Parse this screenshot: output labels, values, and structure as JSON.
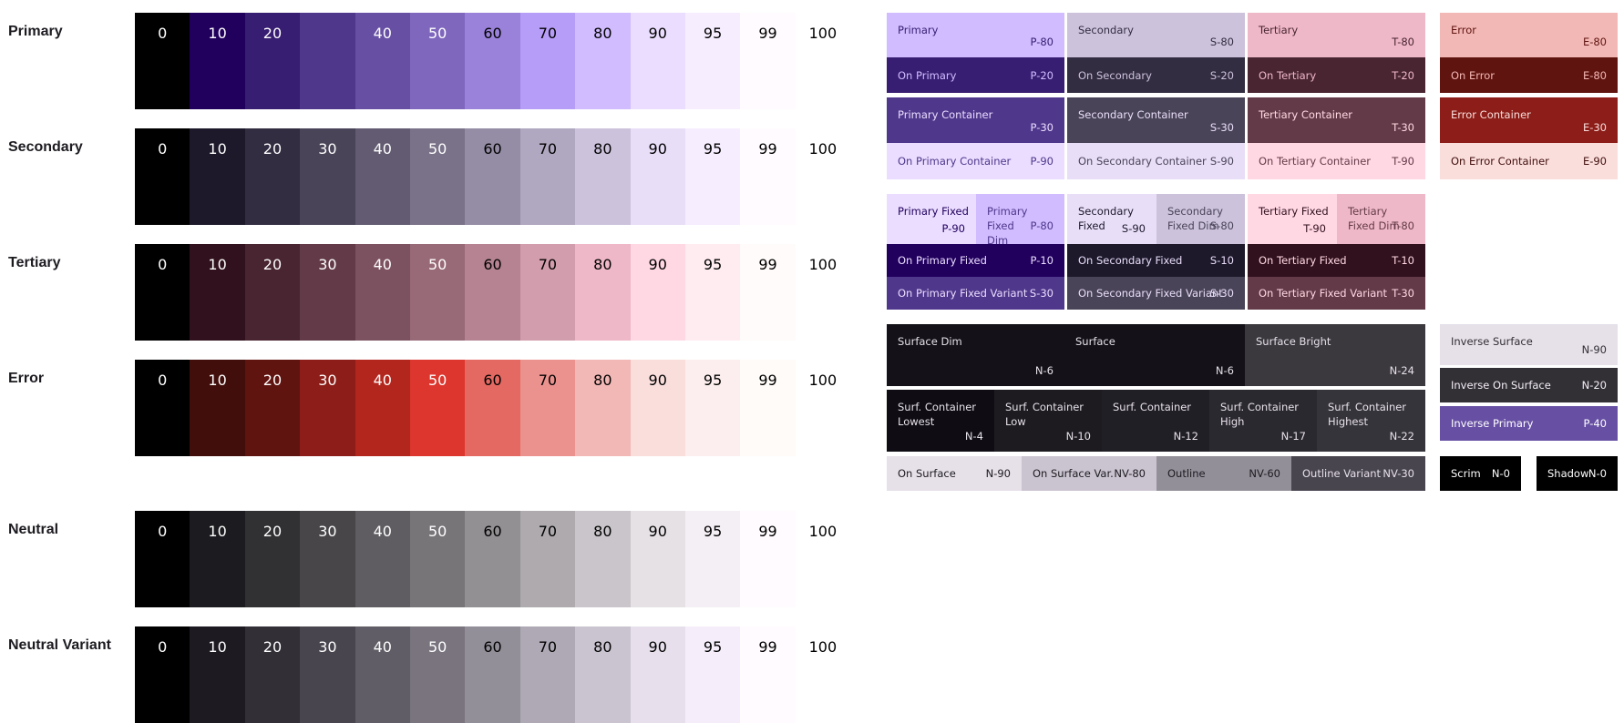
{
  "palettes": [
    {
      "label": "Primary",
      "tones": [
        "0",
        "10",
        "20",
        "",
        "40",
        "50",
        "60",
        "70",
        "80",
        "90",
        "95",
        "99",
        "100"
      ],
      "colors": [
        "#000000",
        "#21005d",
        "#381e72",
        "#4f378b",
        "#6750a4",
        "#7f67be",
        "#9a82db",
        "#b69df8",
        "#d0bcff",
        "#eaddff",
        "#f6edff",
        "#fffbfe",
        "#ffffff"
      ]
    },
    {
      "label": "Secondary",
      "tones": [
        "0",
        "10",
        "20",
        "30",
        "40",
        "50",
        "60",
        "70",
        "80",
        "90",
        "95",
        "99",
        "100"
      ],
      "colors": [
        "#000000",
        "#1d192b",
        "#332d41",
        "#4a4458",
        "#625b71",
        "#7a7289",
        "#958da5",
        "#b0a7c0",
        "#ccc2dc",
        "#e8def8",
        "#f6edff",
        "#fffbfe",
        "#ffffff"
      ]
    },
    {
      "label": "Tertiary",
      "tones": [
        "0",
        "10",
        "20",
        "30",
        "40",
        "50",
        "60",
        "70",
        "80",
        "90",
        "95",
        "99",
        "100"
      ],
      "colors": [
        "#000000",
        "#31111d",
        "#492532",
        "#633b48",
        "#7d5260",
        "#986977",
        "#b58392",
        "#d29dac",
        "#efb8c8",
        "#ffd8e4",
        "#ffecf1",
        "#fffbfa",
        "#ffffff"
      ]
    },
    {
      "label": "Error",
      "tones": [
        "0",
        "10",
        "20",
        "30",
        "40",
        "50",
        "60",
        "70",
        "80",
        "90",
        "95",
        "99",
        "100"
      ],
      "colors": [
        "#000000",
        "#410e0b",
        "#601410",
        "#8c1d18",
        "#b3261e",
        "#dc362e",
        "#e46962",
        "#ec928e",
        "#f2b8b5",
        "#f9dedc",
        "#fceeee",
        "#fffbf9",
        "#ffffff"
      ]
    },
    {
      "label": "Neutral",
      "tones": [
        "0",
        "10",
        "20",
        "30",
        "40",
        "50",
        "60",
        "70",
        "80",
        "90",
        "95",
        "99",
        "100"
      ],
      "colors": [
        "#000000",
        "#1c1b1f",
        "#313033",
        "#484649",
        "#605d62",
        "#787579",
        "#939094",
        "#aeaaae",
        "#c9c5ca",
        "#e6e1e5",
        "#f4eff4",
        "#fffbfe",
        "#ffffff"
      ]
    },
    {
      "label": "Neutral Variant",
      "tones": [
        "0",
        "10",
        "20",
        "30",
        "40",
        "50",
        "60",
        "70",
        "80",
        "90",
        "95",
        "99",
        "100"
      ],
      "colors": [
        "#000000",
        "#1d1a22",
        "#322f37",
        "#49454f",
        "#605d66",
        "#79747e",
        "#938f99",
        "#aea9b4",
        "#cac4d0",
        "#e7e0ec",
        "#f5eefa",
        "#fffbfe",
        "#ffffff"
      ]
    }
  ],
  "scheme": {
    "primary": {
      "name": "Primary",
      "code": "P-80"
    },
    "on_primary": {
      "name": "On Primary",
      "code": "P-20"
    },
    "primary_container": {
      "name": "Primary Container",
      "code": "P-30"
    },
    "on_primary_container": {
      "name": "On Primary Container",
      "code": "P-90"
    },
    "secondary": {
      "name": "Secondary",
      "code": "S-80"
    },
    "on_secondary": {
      "name": "On Secondary",
      "code": "S-20"
    },
    "secondary_container": {
      "name": "Secondary Container",
      "code": "S-30"
    },
    "on_secondary_container": {
      "name": "On Secondary Container",
      "code": "S-90"
    },
    "tertiary": {
      "name": "Tertiary",
      "code": "T-80"
    },
    "on_tertiary": {
      "name": "On Tertiary",
      "code": "T-20"
    },
    "tertiary_container": {
      "name": "Tertiary Container",
      "code": "T-30"
    },
    "on_tertiary_container": {
      "name": "On Tertiary Container",
      "code": "T-90"
    },
    "error": {
      "name": "Error",
      "code": "E-80"
    },
    "on_error": {
      "name": "On Error",
      "code": "E-80"
    },
    "error_container": {
      "name": "Error Container",
      "code": "E-30"
    },
    "on_error_container": {
      "name": "On Error Container",
      "code": "E-90"
    },
    "primary_fixed": {
      "name": "Primary Fixed",
      "code": "P-90"
    },
    "primary_fixed_dim": {
      "name": "Primary Fixed Dim",
      "code": "P-80"
    },
    "on_primary_fixed": {
      "name": "On Primary Fixed",
      "code": "P-10"
    },
    "on_primary_fixed_variant": {
      "name": "On Primary Fixed Variant",
      "code": "S-30"
    },
    "secondary_fixed": {
      "name": "Secondary Fixed",
      "code": "S-90"
    },
    "secondary_fixed_dim": {
      "name": "Secondary Fixed Dim",
      "code": "S-80"
    },
    "on_secondary_fixed": {
      "name": "On Secondary Fixed",
      "code": "S-10"
    },
    "on_secondary_fixed_variant": {
      "name": "On Secondary Fixed Variant",
      "code": "S-30"
    },
    "tertiary_fixed": {
      "name": "Tertiary Fixed",
      "code": "T-90"
    },
    "tertiary_fixed_dim": {
      "name": "Tertiary Fixed Dim",
      "code": "T-80"
    },
    "on_tertiary_fixed": {
      "name": "On Tertiary Fixed",
      "code": "T-10"
    },
    "on_tertiary_fixed_variant": {
      "name": "On Tertiary Fixed Variant",
      "code": "T-30"
    },
    "surface_dim": {
      "name": "Surface Dim",
      "code": "N-6"
    },
    "surface": {
      "name": "Surface",
      "code": "N-6"
    },
    "surface_bright": {
      "name": "Surface Bright",
      "code": "N-24"
    },
    "surf_lowest": {
      "name": "Surf. Container Lowest",
      "code": "N-4"
    },
    "surf_low": {
      "name": "Surf. Container Low",
      "code": "N-10"
    },
    "surf_container": {
      "name": "Surf. Container",
      "code": "N-12"
    },
    "surf_high": {
      "name": "Surf. Container High",
      "code": "N-17"
    },
    "surf_highest": {
      "name": "Surf. Container Highest",
      "code": "N-22"
    },
    "on_surface": {
      "name": "On Surface",
      "code": "N-90"
    },
    "on_surface_var": {
      "name": "On Surface Var.",
      "code": "NV-80"
    },
    "outline": {
      "name": "Outline",
      "code": "NV-60"
    },
    "outline_variant": {
      "name": "Outline Variant",
      "code": "NV-30"
    },
    "inverse_surface": {
      "name": "Inverse Surface",
      "code": "N-90"
    },
    "inverse_on_surface": {
      "name": "Inverse On Surface",
      "code": "N-20"
    },
    "inverse_primary": {
      "name": "Inverse Primary",
      "code": "P-40"
    },
    "scrim": {
      "name": "Scrim",
      "code": "N-0"
    },
    "shadow": {
      "name": "Shadow",
      "code": "N-0"
    }
  }
}
